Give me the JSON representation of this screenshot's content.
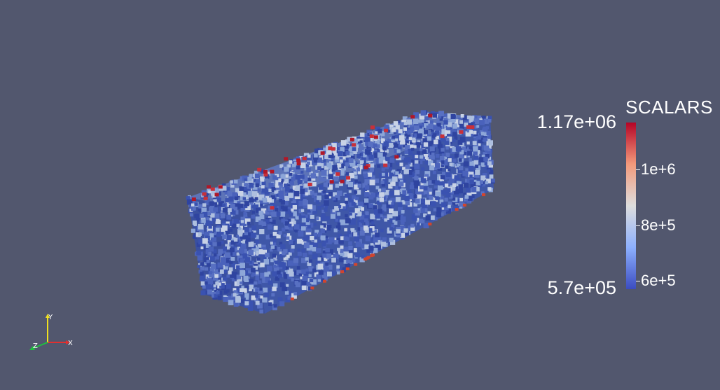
{
  "legend": {
    "title": "SCALARS",
    "range_max": "1.17e+06",
    "range_min": "5.7e+05",
    "ticks": [
      {
        "label": "1e+6",
        "value": 1000000
      },
      {
        "label": "8e+5",
        "value": 800000
      },
      {
        "label": "6e+5",
        "value": 600000
      }
    ],
    "value_min": 570000,
    "value_max": 1170000,
    "colormap": [
      "#3b4cc0",
      "#8db0fe",
      "#dddddd",
      "#f49a7b",
      "#b40426"
    ]
  },
  "orientation_axes": {
    "x_label": "X",
    "y_label": "Y",
    "z_label": "Z",
    "x_color": "#e03030",
    "y_color": "#f0e020",
    "z_color": "#20c040"
  },
  "background_color": "#52576e"
}
